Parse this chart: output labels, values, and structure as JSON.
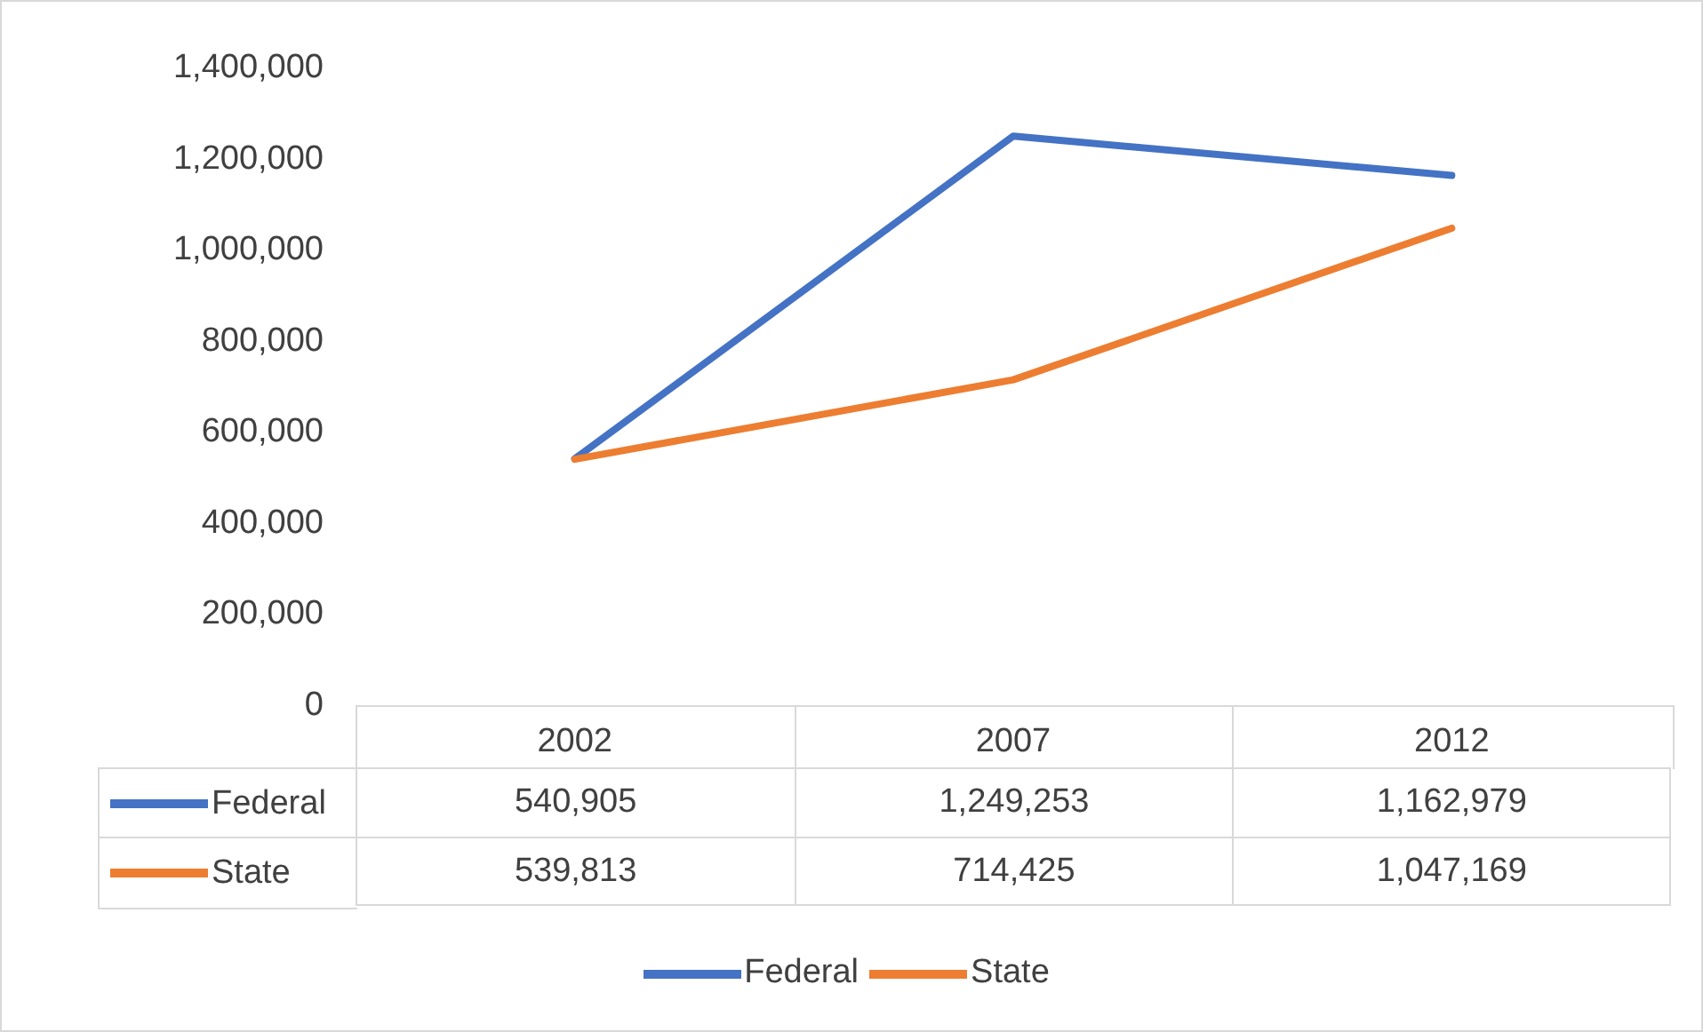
{
  "chart_data": {
    "type": "line",
    "categories": [
      "2002",
      "2007",
      "2012"
    ],
    "series": [
      {
        "name": "Federal",
        "color": "#4472c4",
        "values": [
          540905,
          1249253,
          1162979
        ],
        "value_labels": [
          "540,905",
          "1,249,253",
          "1,162,979"
        ]
      },
      {
        "name": "State",
        "color": "#ed7d31",
        "values": [
          539813,
          714425,
          1047169
        ],
        "value_labels": [
          "539,813",
          "714,425",
          "1,047,169"
        ]
      }
    ],
    "ylim": [
      0,
      1400000
    ],
    "yticks": [
      {
        "value": 0,
        "label": "0"
      },
      {
        "value": 200000,
        "label": "200,000"
      },
      {
        "value": 400000,
        "label": "400,000"
      },
      {
        "value": 600000,
        "label": "600,000"
      },
      {
        "value": 800000,
        "label": "800,000"
      },
      {
        "value": 1000000,
        "label": "1,000,000"
      },
      {
        "value": 1200000,
        "label": "1,200,000"
      },
      {
        "value": 1400000,
        "label": "1,400,000"
      }
    ],
    "grid": false,
    "legend": "bottom",
    "marker": "none",
    "line_style": "solid"
  }
}
